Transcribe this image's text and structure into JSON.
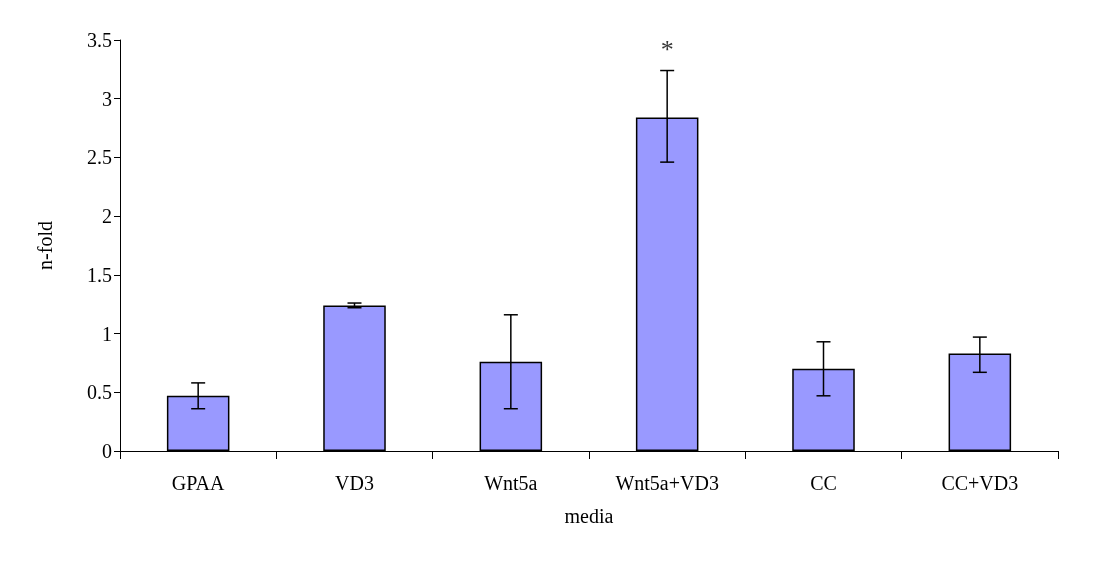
{
  "chart_data": {
    "type": "bar",
    "xlabel": "media",
    "ylabel": "n-fold",
    "categories": [
      "GPAA",
      "VD3",
      "Wnt5a",
      "Wnt5a+VD3",
      "CC",
      "CC+VD3"
    ],
    "values": [
      0.47,
      1.24,
      0.76,
      2.84,
      0.7,
      0.83
    ],
    "errors": [
      [
        0.36,
        0.58
      ],
      [
        1.22,
        1.26
      ],
      [
        0.36,
        1.16
      ],
      [
        2.46,
        3.24
      ],
      [
        0.47,
        0.93
      ],
      [
        0.67,
        0.97
      ]
    ],
    "color": "#9999ff",
    "ylim": [
      0,
      3.5
    ],
    "yticks": [
      0,
      0.5,
      1,
      1.5,
      2,
      2.5,
      3,
      3.5
    ],
    "grid": false,
    "annotations": [
      {
        "text": "*",
        "x": "Wnt5a+VD3",
        "y": 3.24
      }
    ]
  }
}
